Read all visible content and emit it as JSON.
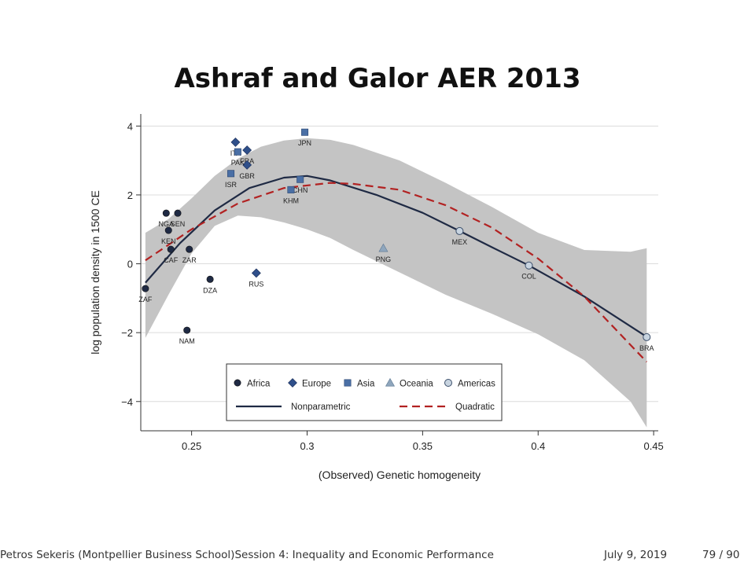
{
  "slide": {
    "title": "Ashraf and Galor AER 2013",
    "footer_left": "Petros Sekeris  (Montpellier Business School)Session 4: Inequality and Economic Performance",
    "footer_date": "July 9, 2019",
    "footer_page": "79 / 90"
  },
  "chart_data": {
    "type": "scatter",
    "title": "",
    "xlabel": "(Observed) Genetic homogeneity",
    "ylabel": "log population density in 1500 CE",
    "xlim": [
      0.228,
      0.452
    ],
    "ylim": [
      -4.85,
      4.35
    ],
    "xticks": [
      0.25,
      0.3,
      0.35,
      0.4,
      0.45
    ],
    "xtick_labels": [
      "0.25",
      "0.3",
      "0.35",
      "0.4",
      "0.45"
    ],
    "yticks": [
      4,
      2,
      0,
      -2,
      -4
    ],
    "ytick_labels": [
      "4",
      "2",
      "0",
      "−2",
      "−4"
    ],
    "grid": true,
    "legend_position": "bottom-center",
    "groups": [
      {
        "name": "Africa",
        "marker": "circle",
        "color": "#1f2a44"
      },
      {
        "name": "Europe",
        "marker": "diamond",
        "color": "#2f4f8a"
      },
      {
        "name": "Asia",
        "marker": "square",
        "color": "#4a6fa5"
      },
      {
        "name": "Oceania",
        "marker": "triangle",
        "color": "#8fa6bd"
      },
      {
        "name": "Americas",
        "marker": "circle-open",
        "color": "#c8d4e0"
      }
    ],
    "points": [
      {
        "label": "ZAF",
        "group": "Africa",
        "x": 0.23,
        "y": -0.72
      },
      {
        "label": "NGA",
        "group": "Africa",
        "x": 0.239,
        "y": 1.47
      },
      {
        "label": "SEN",
        "group": "Africa",
        "x": 0.244,
        "y": 1.47
      },
      {
        "label": "KEN",
        "group": "Africa",
        "x": 0.24,
        "y": 0.97
      },
      {
        "label": "CAF",
        "group": "Africa",
        "x": 0.241,
        "y": 0.42
      },
      {
        "label": "ZAR",
        "group": "Africa",
        "x": 0.249,
        "y": 0.42
      },
      {
        "label": "DZA",
        "group": "Africa",
        "x": 0.258,
        "y": -0.45
      },
      {
        "label": "NAM",
        "group": "Africa",
        "x": 0.248,
        "y": -1.93
      },
      {
        "label": "ITA",
        "group": "Europe",
        "x": 0.269,
        "y": 3.53
      },
      {
        "label": "FRA",
        "group": "Europe",
        "x": 0.274,
        "y": 3.3
      },
      {
        "label": "GBR",
        "group": "Europe",
        "x": 0.274,
        "y": 2.87
      },
      {
        "label": "RUS",
        "group": "Europe",
        "x": 0.278,
        "y": -0.27
      },
      {
        "label": "PAK",
        "group": "Asia",
        "x": 0.27,
        "y": 3.25
      },
      {
        "label": "ISR",
        "group": "Asia",
        "x": 0.267,
        "y": 2.62
      },
      {
        "label": "JPN",
        "group": "Asia",
        "x": 0.299,
        "y": 3.82
      },
      {
        "label": "CHN",
        "group": "Asia",
        "x": 0.297,
        "y": 2.45
      },
      {
        "label": "KHM",
        "group": "Asia",
        "x": 0.293,
        "y": 2.15
      },
      {
        "label": "PNG",
        "group": "Oceania",
        "x": 0.333,
        "y": 0.45
      },
      {
        "label": "MEX",
        "group": "Americas",
        "x": 0.366,
        "y": 0.95
      },
      {
        "label": "COL",
        "group": "Americas",
        "x": 0.396,
        "y": -0.05
      },
      {
        "label": "BRA",
        "group": "Americas",
        "x": 0.447,
        "y": -2.13
      }
    ],
    "series": [
      {
        "name": "Nonparametric",
        "style": "solid",
        "color": "#1f2a44",
        "x": [
          0.23,
          0.245,
          0.26,
          0.275,
          0.29,
          0.3,
          0.31,
          0.33,
          0.35,
          0.366,
          0.38,
          0.396,
          0.42,
          0.447
        ],
        "y": [
          -0.55,
          0.6,
          1.55,
          2.2,
          2.5,
          2.55,
          2.42,
          2.0,
          1.48,
          0.95,
          0.48,
          -0.05,
          -0.95,
          -2.12
        ]
      },
      {
        "name": "Quadratic",
        "style": "dashed",
        "color": "#b22222",
        "x": [
          0.23,
          0.25,
          0.27,
          0.29,
          0.31,
          0.32,
          0.34,
          0.36,
          0.38,
          0.4,
          0.42,
          0.447
        ],
        "y": [
          0.1,
          1.0,
          1.75,
          2.2,
          2.35,
          2.32,
          2.15,
          1.7,
          1.05,
          0.15,
          -0.95,
          -2.85
        ]
      }
    ],
    "confidence_band": {
      "x": [
        0.23,
        0.24,
        0.25,
        0.26,
        0.27,
        0.28,
        0.29,
        0.3,
        0.31,
        0.32,
        0.34,
        0.36,
        0.38,
        0.4,
        0.42,
        0.44,
        0.447
      ],
      "upper": [
        0.9,
        1.3,
        1.9,
        2.55,
        3.05,
        3.4,
        3.58,
        3.65,
        3.6,
        3.45,
        3.0,
        2.35,
        1.65,
        0.9,
        0.4,
        0.35,
        0.45
      ],
      "lower": [
        -2.15,
        -0.9,
        0.3,
        1.1,
        1.4,
        1.35,
        1.2,
        1.0,
        0.75,
        0.4,
        -0.25,
        -0.9,
        -1.45,
        -2.05,
        -2.8,
        -4.0,
        -4.75
      ]
    }
  }
}
